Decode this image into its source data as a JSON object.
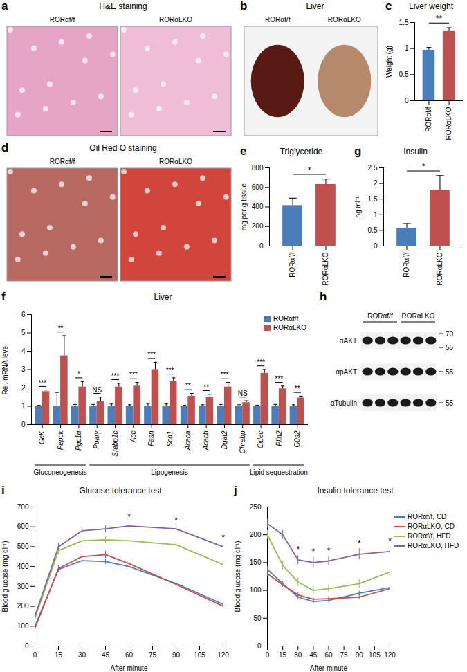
{
  "chart_data": [
    {
      "panel": "c",
      "type": "bar",
      "title": "Liver weight",
      "y_label": "Weight (g)",
      "categories": [
        "RORαf/f",
        "RORαLKO"
      ],
      "values": [
        0.97,
        1.33
      ],
      "errors": [
        0.05,
        0.07
      ],
      "colors": [
        "#4a7ebb",
        "#c0504d"
      ],
      "ylim": [
        0,
        1.5
      ],
      "yticks": [
        0,
        0.5,
        1,
        1.5
      ],
      "significance": "**"
    },
    {
      "panel": "e",
      "type": "bar",
      "title": "Triglyceride",
      "y_label": "mg per g tissue",
      "categories": [
        "RORαf/f",
        "RORαLKO"
      ],
      "values": [
        415,
        630
      ],
      "errors": [
        75,
        55
      ],
      "colors": [
        "#4a7ebb",
        "#c0504d"
      ],
      "ylim": [
        0,
        800
      ],
      "yticks": [
        0,
        200,
        400,
        600,
        800
      ],
      "significance": "*"
    },
    {
      "panel": "g",
      "type": "bar",
      "title": "Insulin",
      "y_label": "ng ml⁻¹",
      "categories": [
        "RORαf/f",
        "RORαLKO"
      ],
      "values": [
        0.57,
        1.78
      ],
      "errors": [
        0.15,
        0.47
      ],
      "colors": [
        "#4a7ebb",
        "#c0504d"
      ],
      "ylim": [
        0,
        2.5
      ],
      "yticks": [
        0,
        0.5,
        1,
        1.5,
        2,
        2.5
      ],
      "significance": "*"
    },
    {
      "panel": "f",
      "type": "bar",
      "title": "Liver",
      "y_label": "Rel. mRNA level",
      "categories": [
        "GcK",
        "Pepck",
        "Pgc1α",
        "Pparγ",
        "Srebp1c",
        "Acc",
        "Fasn",
        "Scd1",
        "Acaca",
        "Acacb",
        "Dgat2",
        "Chrebp",
        "Cidec",
        "Plin2",
        "G0s2"
      ],
      "series": [
        {
          "name": "RORαf/f",
          "color": "#4a7ebb",
          "values": [
            1,
            1,
            1,
            1,
            1,
            1,
            1,
            1,
            1,
            1,
            1,
            1,
            1,
            1,
            1
          ],
          "errors": [
            0.05,
            0.75,
            0.1,
            0.1,
            0.12,
            0.08,
            0.15,
            0.12,
            0.06,
            0.08,
            0.1,
            0.08,
            0.06,
            0.1,
            0.08
          ]
        },
        {
          "name": "RORαLKO",
          "color": "#c0504d",
          "values": [
            1.8,
            3.75,
            2.05,
            1.25,
            2.05,
            2.1,
            3.0,
            2.35,
            1.55,
            1.5,
            2.05,
            1.2,
            2.8,
            1.95,
            1.45
          ],
          "errors": [
            0.08,
            1.1,
            0.3,
            0.25,
            0.2,
            0.2,
            0.4,
            0.2,
            0.15,
            0.15,
            0.25,
            0.1,
            0.2,
            0.15,
            0.1
          ]
        }
      ],
      "significance": [
        "***",
        "**",
        "*",
        "NS",
        "***",
        "***",
        "***",
        "***",
        "**",
        "**",
        "***",
        "NS",
        "***",
        "***",
        "**"
      ],
      "groups": [
        {
          "name": "Gluconeogenesis",
          "start": 0,
          "end": 2
        },
        {
          "name": "Lipogenesis",
          "start": 3,
          "end": 11
        },
        {
          "name": "Lipid sequestration",
          "start": 12,
          "end": 14
        }
      ],
      "ylim": [
        0,
        6
      ],
      "yticks": [
        0,
        1,
        2,
        3,
        4,
        5,
        6
      ],
      "legend": "top-right"
    },
    {
      "panel": "i",
      "type": "line",
      "title": "Glucose tolerance test",
      "x_label": "After minute",
      "y_label": "Blood glucose (mg dl⁻¹)",
      "x": [
        0,
        15,
        30,
        45,
        60,
        90,
        120
      ],
      "xlim": [
        0,
        120
      ],
      "xticks": [
        0,
        15,
        30,
        45,
        60,
        75,
        90,
        105,
        120
      ],
      "ylim": [
        0,
        700
      ],
      "yticks": [
        0,
        100,
        200,
        300,
        400,
        500,
        600,
        700
      ],
      "series": [
        {
          "name": "RORαf/f, CD",
          "color": "#4a7ebb",
          "values": [
            100,
            385,
            430,
            425,
            400,
            315,
            210
          ],
          "errors": [
            8,
            15,
            15,
            15,
            12,
            10,
            10
          ]
        },
        {
          "name": "RORαLKO, CD",
          "color": "#c0504d",
          "values": [
            90,
            390,
            450,
            460,
            415,
            310,
            200
          ],
          "errors": [
            8,
            15,
            15,
            18,
            12,
            10,
            10
          ]
        },
        {
          "name": "RORαf/f, HFD",
          "color": "#9bbb59",
          "values": [
            140,
            480,
            530,
            535,
            530,
            510,
            410
          ],
          "errors": [
            10,
            20,
            15,
            15,
            15,
            15,
            15
          ]
        },
        {
          "name": "RORαLKO, HFD",
          "color": "#8064a2",
          "values": [
            150,
            500,
            580,
            590,
            605,
            590,
            500
          ],
          "errors": [
            10,
            20,
            15,
            15,
            15,
            15,
            15
          ]
        }
      ],
      "annotations": [
        {
          "x": 60,
          "text": "*"
        },
        {
          "x": 90,
          "text": "*"
        },
        {
          "x": 120,
          "text": "*"
        }
      ]
    },
    {
      "panel": "j",
      "type": "line",
      "title": "Insulin tolerance test",
      "x_label": "After minute",
      "y_label": "Blood glucose (mg dl⁻¹)",
      "x": [
        0,
        15,
        30,
        45,
        60,
        90,
        120
      ],
      "xlim": [
        0,
        120
      ],
      "xticks": [
        0,
        15,
        30,
        45,
        60,
        75,
        90,
        105,
        120
      ],
      "ylim": [
        0,
        250
      ],
      "yticks": [
        0,
        50,
        100,
        150,
        200,
        250
      ],
      "series": [
        {
          "name": "RORαf/f, CD",
          "color": "#4a7ebb",
          "values": [
            138,
            112,
            88,
            80,
            82,
            95,
            105
          ],
          "errors": [
            5,
            4,
            4,
            4,
            4,
            4,
            4
          ]
        },
        {
          "name": "RORαLKO, CD",
          "color": "#c0504d",
          "values": [
            130,
            110,
            92,
            84,
            85,
            88,
            103
          ],
          "errors": [
            5,
            4,
            4,
            4,
            4,
            4,
            4
          ]
        },
        {
          "name": "RORαf/f, HFD",
          "color": "#9bbb59",
          "values": [
            200,
            145,
            115,
            100,
            103,
            112,
            133
          ],
          "errors": [
            8,
            8,
            8,
            7,
            7,
            8,
            8
          ]
        },
        {
          "name": "RORαLKO, HFD",
          "color": "#8064a2",
          "values": [
            220,
            200,
            155,
            150,
            153,
            165,
            170
          ],
          "errors": [
            8,
            8,
            8,
            10,
            8,
            10,
            8
          ]
        }
      ],
      "annotations": [
        {
          "x": 30,
          "text": "*"
        },
        {
          "x": 45,
          "text": "*"
        },
        {
          "x": 60,
          "text": "*"
        },
        {
          "x": 90,
          "text": "*"
        },
        {
          "x": 120,
          "text": "*"
        }
      ],
      "legend": "right"
    }
  ],
  "images": [
    {
      "panel": "a",
      "title": "H&E staining",
      "labels": [
        "RORαf/f",
        "RORαLKO"
      ]
    },
    {
      "panel": "b",
      "title": "Liver",
      "labels": [
        "RORαf/f",
        "RORαLKO"
      ]
    },
    {
      "panel": "d",
      "title": "Oil Red O staining",
      "labels": [
        "RORαf/f",
        "RORαLKO"
      ]
    }
  ],
  "blot": {
    "panel": "h",
    "groups": [
      "RORαf/f",
      "RORαLKO"
    ],
    "lanes_per_group": 3,
    "rows": [
      {
        "label": "αAKT",
        "markers": [
          70,
          55
        ]
      },
      {
        "label": "αpAKT",
        "markers": [
          55
        ]
      },
      {
        "label": "αTubulin",
        "markers": [
          55
        ]
      }
    ]
  }
}
